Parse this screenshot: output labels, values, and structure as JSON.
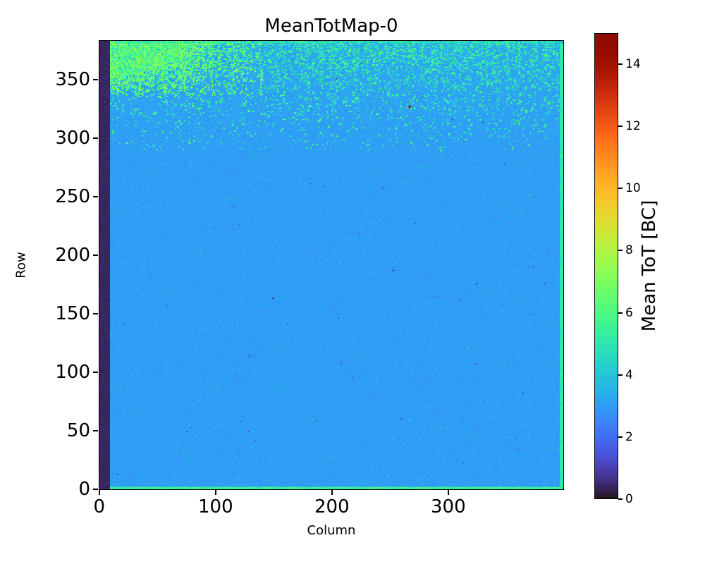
{
  "figure": {
    "background": "#ffffff",
    "spine_color": "#000000"
  },
  "chart_data": {
    "type": "heatmap",
    "title": "MeanTotMap-0",
    "xlabel": "Column",
    "ylabel": "Row",
    "colorbar_label": "Mean ToT [BC]",
    "colormap": "turbo",
    "x_range": [
      0,
      400
    ],
    "y_range": [
      0,
      384
    ],
    "value_range": [
      0,
      15
    ],
    "xticks": [
      0,
      100,
      200,
      300
    ],
    "yticks": [
      0,
      50,
      100,
      150,
      200,
      250,
      300,
      350
    ],
    "colorbar_ticks": [
      0,
      2,
      4,
      6,
      8,
      10,
      12,
      14
    ],
    "grid": {
      "cols": 400,
      "rows": 384
    },
    "field": {
      "base_value": 3.0,
      "noise_sigma": 0.12,
      "seed": 42
    },
    "regions": [
      {
        "name": "left-dead-columns",
        "col_min": 0,
        "col_max": 8,
        "row_min": 0,
        "row_max": 383,
        "value": 0.25
      },
      {
        "name": "bottom-edge-rows",
        "col_min": 9,
        "col_max": 399,
        "row_min": 0,
        "row_max": 1,
        "value": 5.4
      },
      {
        "name": "top-edge-rows",
        "col_min": 9,
        "col_max": 399,
        "row_min": 382,
        "row_max": 383,
        "value": 5.0,
        "density": 0.55
      },
      {
        "name": "right-edge-columns",
        "col_min": 397,
        "col_max": 399,
        "row_min": 2,
        "row_max": 381,
        "value": 5.0
      },
      {
        "name": "top-left-hot-cluster",
        "col_min": 9,
        "col_max": 140,
        "row_min": 335,
        "row_max": 383,
        "value_min": 5.0,
        "value_max": 7.8
      },
      {
        "name": "upper-speckle-band",
        "col_min": 9,
        "col_max": 399,
        "row_min": 290,
        "row_max": 383,
        "value_min": 4.2,
        "value_max": 6.4
      }
    ],
    "outliers": [
      {
        "col": 267,
        "row": 327,
        "value": 15,
        "size": 2
      },
      {
        "col": 157,
        "row": 213,
        "value": 13,
        "size": 1
      },
      {
        "col": 325,
        "row": 176,
        "value": 0.3,
        "size": 1
      },
      {
        "col": 226,
        "row": 364,
        "value": 0.3,
        "size": 1
      },
      {
        "col": 330,
        "row": 314,
        "value": 0.4,
        "size": 1
      },
      {
        "col": 122,
        "row": 58,
        "value": 1.2,
        "size": 1
      },
      {
        "col": 128,
        "row": 49,
        "value": 1.0,
        "size": 1
      },
      {
        "col": 134,
        "row": 41,
        "value": 1.2,
        "size": 1
      },
      {
        "col": 119,
        "row": 33,
        "value": 1.3,
        "size": 1
      }
    ]
  }
}
